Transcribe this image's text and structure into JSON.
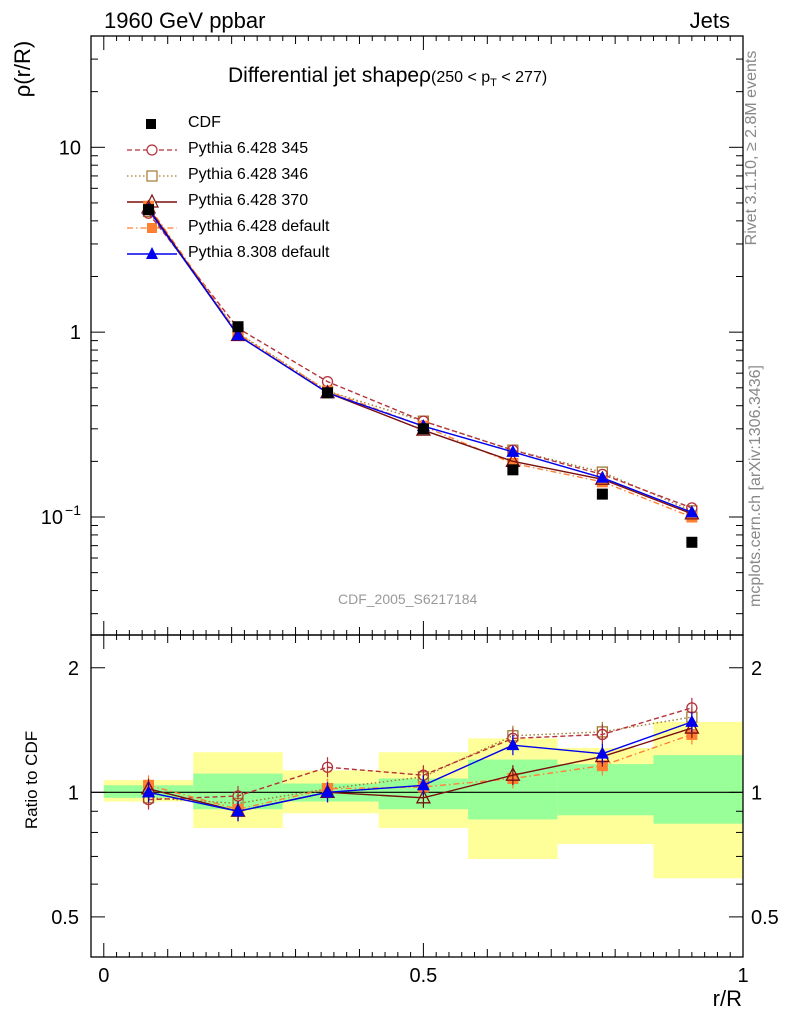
{
  "header": {
    "left": "1960 GeV ppbar",
    "right": "Jets"
  },
  "side_text": {
    "rivet": "Rivet 3.1.10, ≥ 2.8M events",
    "mcplots": "mcplots.cern.ch [arXiv:1306.3436]"
  },
  "watermark": "CDF_2005_S6217184",
  "colors": {
    "cdf": "#000000",
    "p345": "#b5323a",
    "p346": "#a07a2e",
    "p370": "#7a0f0f",
    "pdef": "#ff8033",
    "p8": "#0000ee",
    "band_inner": "#99ff99",
    "band_outer": "#ffff99"
  },
  "chart_data": [
    {
      "type": "line",
      "title": "Differential jet shapeρ (250 < p_T < 277)",
      "title_main": "Differential jet shapeρ",
      "title_sub_pre": "(250 < p",
      "title_sub_sub": "T",
      "title_sub_post": " < 277)",
      "ylabel": "ρ(r/R)",
      "xlabel": "r/R",
      "xlim": [
        -0.02,
        1.0
      ],
      "ylim": [
        0.023,
        40
      ],
      "yscale": "log",
      "yticks": [
        {
          "value": 0.1,
          "label_base": "10",
          "label_exp": "−1"
        },
        {
          "value": 1,
          "label_base": "1",
          "label_exp": ""
        },
        {
          "value": 10,
          "label_base": "10",
          "label_exp": ""
        }
      ],
      "legend_position": "top-left",
      "x": [
        0.07,
        0.21,
        0.35,
        0.5,
        0.64,
        0.78,
        0.92
      ],
      "series": [
        {
          "key": "cdf",
          "name": "CDF",
          "values": [
            4.6,
            1.07,
            0.47,
            0.3,
            0.18,
            0.133,
            0.073
          ],
          "marker": "square-filled",
          "line": "none"
        },
        {
          "key": "p345",
          "name": "Pythia 6.428 345",
          "values": [
            4.4,
            1.05,
            0.54,
            0.33,
            0.23,
            0.17,
            0.112
          ],
          "marker": "circle-open",
          "line": "dashed"
        },
        {
          "key": "p346",
          "name": "Pythia 6.428 346",
          "values": [
            4.5,
            0.99,
            0.48,
            0.33,
            0.23,
            0.175,
            0.108
          ],
          "marker": "square-open",
          "line": "dotted"
        },
        {
          "key": "p370",
          "name": "Pythia 6.428 370",
          "values": [
            4.7,
            0.96,
            0.47,
            0.295,
            0.2,
            0.16,
            0.104
          ],
          "marker": "triangle-open",
          "line": "solid"
        },
        {
          "key": "pdef",
          "name": "Pythia 6.428 default",
          "values": [
            4.8,
            0.98,
            0.48,
            0.31,
            0.195,
            0.155,
            0.1
          ],
          "marker": "square-filled",
          "line": "dashdot"
        },
        {
          "key": "p8",
          "name": "Pythia 8.308 default",
          "values": [
            4.6,
            0.96,
            0.47,
            0.31,
            0.225,
            0.163,
            0.106
          ],
          "marker": "triangle-filled",
          "line": "solid"
        }
      ]
    },
    {
      "type": "line",
      "ylabel": "Ratio to CDF",
      "xlabel": "r/R",
      "xlim": [
        -0.02,
        1.0
      ],
      "ylim": [
        0.4,
        2.4
      ],
      "yscale": "log",
      "yticks": [
        {
          "value": 0.5,
          "label": "0.5"
        },
        {
          "value": 1,
          "label": "1"
        },
        {
          "value": 2,
          "label": "2"
        }
      ],
      "xticks": [
        {
          "value": 0,
          "label": "0"
        },
        {
          "value": 0.5,
          "label": "0.5"
        },
        {
          "value": 1,
          "label": "1"
        }
      ],
      "x": [
        0.07,
        0.21,
        0.35,
        0.5,
        0.64,
        0.78,
        0.92
      ],
      "bin_edges": [
        0,
        0.14,
        0.28,
        0.43,
        0.57,
        0.71,
        0.86,
        1.0
      ],
      "band_inner": {
        "low": [
          0.97,
          0.91,
          0.95,
          0.91,
          0.86,
          0.88,
          0.84
        ],
        "high": [
          1.04,
          1.11,
          1.05,
          1.08,
          1.2,
          1.17,
          1.23
        ]
      },
      "band_outer": {
        "low": [
          0.95,
          0.82,
          0.89,
          0.82,
          0.69,
          0.75,
          0.62
        ],
        "high": [
          1.07,
          1.25,
          1.13,
          1.25,
          1.35,
          1.28,
          1.48
        ]
      },
      "series": [
        {
          "key": "p345",
          "name": "Pythia 6.428 345",
          "values": [
            0.96,
            0.98,
            1.15,
            1.1,
            1.35,
            1.38,
            1.6
          ]
        },
        {
          "key": "p346",
          "name": "Pythia 6.428 346",
          "values": [
            0.97,
            0.94,
            1.02,
            1.09,
            1.37,
            1.4,
            1.52
          ]
        },
        {
          "key": "p370",
          "name": "Pythia 6.428 370",
          "values": [
            1.02,
            0.9,
            1.0,
            0.97,
            1.1,
            1.22,
            1.43
          ]
        },
        {
          "key": "pdef",
          "name": "Pythia 6.428 default",
          "values": [
            1.04,
            0.91,
            1.02,
            1.03,
            1.08,
            1.16,
            1.38
          ]
        },
        {
          "key": "p8",
          "name": "Pythia 8.308 default",
          "values": [
            1.0,
            0.9,
            1.0,
            1.04,
            1.3,
            1.24,
            1.48
          ]
        }
      ]
    }
  ]
}
